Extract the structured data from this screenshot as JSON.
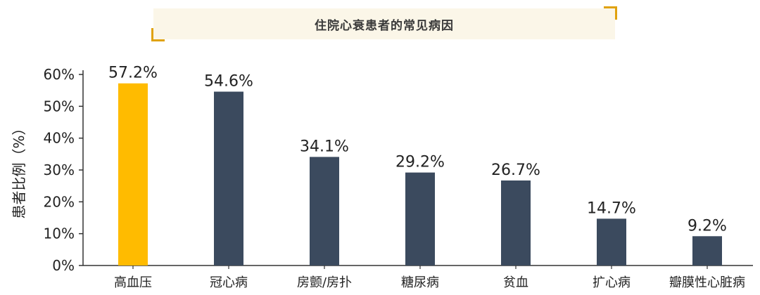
{
  "title": "住院心衰患者的常见病因",
  "colors": {
    "highlight": "#ffbb00",
    "bar": "#3b4a5e",
    "axis": "#333333",
    "accent": "#e0a20e"
  },
  "chart_data": {
    "type": "bar",
    "title": "住院心衰患者的常见病因",
    "ylabel": "患者比例（%）",
    "xlabel": "",
    "ylim": [
      0,
      60
    ],
    "yticks": [
      0,
      10,
      20,
      30,
      40,
      50,
      60
    ],
    "ytick_labels": [
      "0%",
      "10%",
      "20%",
      "30%",
      "40%",
      "50%",
      "60%"
    ],
    "categories": [
      "高血压",
      "冠心病",
      "房颤/房扑",
      "糖尿病",
      "贫血",
      "扩心病",
      "瓣膜性心脏病"
    ],
    "values": [
      57.2,
      54.6,
      34.1,
      29.2,
      26.7,
      14.7,
      9.2
    ],
    "value_labels": [
      "57.2%",
      "54.6%",
      "34.1%",
      "29.2%",
      "26.7%",
      "14.7%",
      "9.2%"
    ],
    "highlight_index": 0,
    "grid": false
  }
}
